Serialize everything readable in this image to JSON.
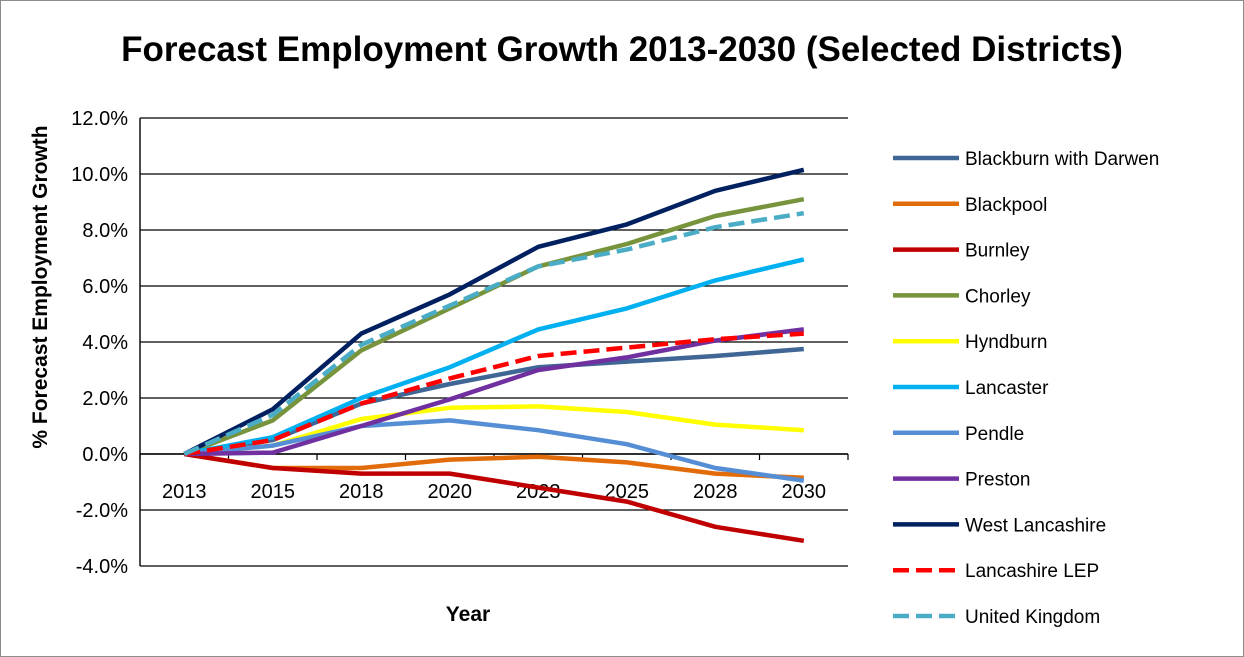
{
  "chart_data": {
    "type": "line",
    "title": "Forecast Employment Growth 2013-2030 (Selected Districts)",
    "xlabel": "Year",
    "ylabel": "% Forecast Employment Growth",
    "x": [
      "2013",
      "2015",
      "2018",
      "2020",
      "2023",
      "2025",
      "2028",
      "2030"
    ],
    "ylim": [
      -4.0,
      12.0
    ],
    "yticks": [
      "12.0%",
      "10.0%",
      "8.0%",
      "6.0%",
      "4.0%",
      "2.0%",
      "0.0%",
      "-2.0%",
      "-4.0%"
    ],
    "grid": true,
    "legend_position": "right",
    "series": [
      {
        "name": "Blackburn with Darwen",
        "color": "#3f6695",
        "dash": false,
        "values": [
          0.0,
          0.5,
          1.8,
          2.5,
          3.1,
          3.3,
          3.5,
          3.75
        ]
      },
      {
        "name": "Blackpool",
        "color": "#e36c0a",
        "dash": false,
        "values": [
          0.0,
          -0.5,
          -0.5,
          -0.2,
          -0.1,
          -0.3,
          -0.7,
          -0.85
        ]
      },
      {
        "name": "Burnley",
        "color": "#c00000",
        "dash": false,
        "values": [
          0.0,
          -0.5,
          -0.7,
          -0.7,
          -1.2,
          -1.7,
          -2.6,
          -3.1
        ]
      },
      {
        "name": "Chorley",
        "color": "#77933c",
        "dash": false,
        "values": [
          0.0,
          1.2,
          3.7,
          5.2,
          6.7,
          7.5,
          8.5,
          9.1
        ]
      },
      {
        "name": "Hyndburn",
        "color": "#ffff00",
        "dash": false,
        "values": [
          0.0,
          0.3,
          1.25,
          1.65,
          1.7,
          1.5,
          1.05,
          0.85
        ]
      },
      {
        "name": "Lancaster",
        "color": "#00b0f0",
        "dash": false,
        "values": [
          0.0,
          0.6,
          2.0,
          3.1,
          4.45,
          5.2,
          6.2,
          6.95
        ]
      },
      {
        "name": "Pendle",
        "color": "#558ed5",
        "dash": false,
        "values": [
          0.0,
          0.3,
          1.0,
          1.2,
          0.85,
          0.35,
          -0.5,
          -0.95
        ]
      },
      {
        "name": "Preston",
        "color": "#7030a0",
        "dash": false,
        "values": [
          0.0,
          0.05,
          1.0,
          1.95,
          3.0,
          3.45,
          4.05,
          4.45
        ]
      },
      {
        "name": "West Lancashire",
        "color": "#002060",
        "dash": false,
        "values": [
          0.0,
          1.6,
          4.3,
          5.7,
          7.4,
          8.2,
          9.4,
          10.15
        ]
      },
      {
        "name": "Lancashire LEP",
        "color": "#ff0000",
        "dash": true,
        "values": [
          0.0,
          0.5,
          1.8,
          2.7,
          3.5,
          3.8,
          4.1,
          4.3
        ]
      },
      {
        "name": "United Kingdom",
        "color": "#4bacc6",
        "dash": true,
        "values": [
          0.0,
          1.4,
          3.9,
          5.3,
          6.7,
          7.3,
          8.1,
          8.6
        ]
      }
    ]
  }
}
